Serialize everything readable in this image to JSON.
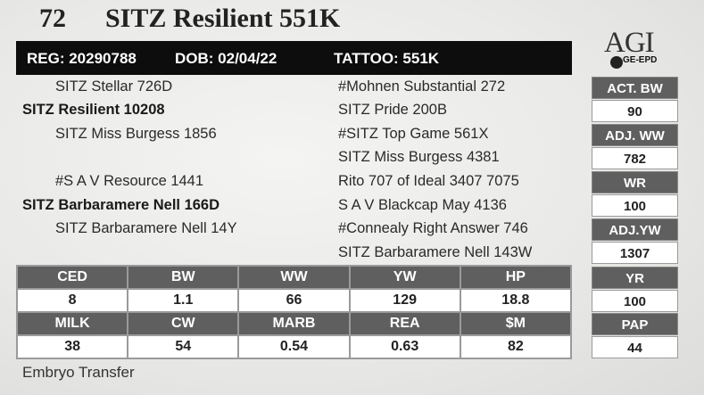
{
  "header": {
    "lot": "72",
    "name": "SITZ Resilient 551K"
  },
  "reg_bar": {
    "reg": "REG: 20290788",
    "dob": "DOB: 02/04/22",
    "tattoo": "TATTOO: 551K"
  },
  "logo": {
    "text": "AGI",
    "subtext": "GE-EPD"
  },
  "pedigree": {
    "sire_sire": "SITZ Stellar 726D",
    "sire": "SITZ Resilient 10208",
    "sire_dam": "SITZ Miss Burgess 1856",
    "dam_sire": "#S A V Resource 1441",
    "dam": "SITZ Barbaramere Nell 166D",
    "dam_dam": "SITZ Barbaramere Nell 14Y",
    "ggs": [
      "#Mohnen Substantial 272",
      "SITZ Pride 200B",
      "#SITZ Top Game 561X",
      "SITZ Miss Burgess 4381",
      "Rito 707 of Ideal 3407 7075",
      "S A V Blackcap May 4136",
      "#Connealy Right Answer 746",
      "SITZ Barbaramere Nell 143W"
    ]
  },
  "side_stats": [
    {
      "label": "ACT. BW",
      "value": "90"
    },
    {
      "label": "ADJ. WW",
      "value": "782"
    },
    {
      "label": "WR",
      "value": "100"
    },
    {
      "label": "ADJ.YW",
      "value": "1307"
    },
    {
      "label": "YR",
      "value": "100"
    },
    {
      "label": "PAP",
      "value": "44"
    }
  ],
  "epd": {
    "row1": {
      "headers": [
        "CED",
        "BW",
        "WW",
        "YW",
        "HP"
      ],
      "values": [
        "8",
        "1.1",
        "66",
        "129",
        "18.8"
      ]
    },
    "row2": {
      "headers": [
        "MILK",
        "CW",
        "MARB",
        "REA",
        "$M"
      ],
      "values": [
        "38",
        "54",
        "0.54",
        "0.63",
        "82"
      ]
    }
  },
  "footer": "Embryo Transfer"
}
